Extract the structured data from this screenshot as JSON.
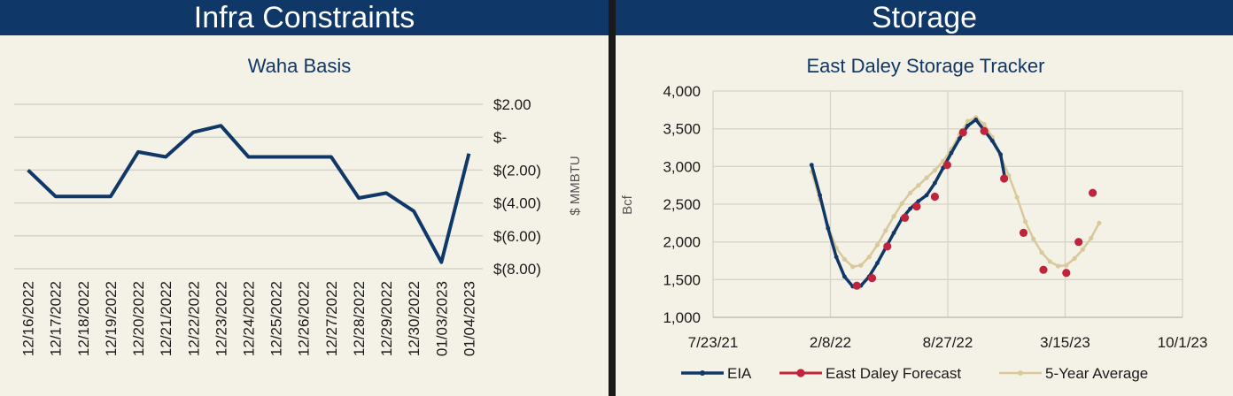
{
  "left_panel": {
    "banner": "Infra Constraints"
  },
  "right_panel": {
    "banner": "Storage"
  },
  "colors": {
    "banner": "#0f3768",
    "eia": "#0f3768",
    "forecast": "#c0243c",
    "five_year": "#d9c99a",
    "background": "#f4f1e6"
  },
  "chart_data": [
    {
      "type": "line",
      "title": "Waha Basis",
      "ylabel": "$ MMBTU",
      "categories": [
        "12/16/2022",
        "12/17/2022",
        "12/18/2022",
        "12/19/2022",
        "12/20/2022",
        "12/21/2022",
        "12/22/2022",
        "12/23/2022",
        "12/24/2022",
        "12/25/2022",
        "12/26/2022",
        "12/27/2022",
        "12/28/2022",
        "12/29/2022",
        "12/30/2022",
        "01/03/2023",
        "01/04/2023"
      ],
      "values": [
        -2.0,
        -3.6,
        -3.6,
        -3.6,
        -0.9,
        -1.2,
        0.3,
        0.7,
        -1.2,
        -1.2,
        -1.2,
        -1.2,
        -3.7,
        -3.4,
        -4.5,
        -7.6,
        -1.0
      ],
      "ylim": [
        -8,
        2
      ],
      "y_ticks": [
        2,
        0,
        -2,
        -4,
        -6,
        -8
      ],
      "y_tick_labels": [
        "$2.00",
        "$-",
        "$(2.00)",
        "$(4.00)",
        "$(6.00)",
        "$(8.00)"
      ],
      "grid": true
    },
    {
      "type": "line",
      "title": "East Daley Storage Tracker",
      "ylabel": "Bcf",
      "xlim": [
        "2021-07-23",
        "2023-10-01"
      ],
      "ylim": [
        1000,
        4000
      ],
      "x_ticks": [
        "2021-07-23",
        "2022-02-08",
        "2022-08-27",
        "2023-03-15",
        "2023-10-01"
      ],
      "x_tick_labels": [
        "7/23/21",
        "2/8/22",
        "8/27/22",
        "3/15/23",
        "10/1/23"
      ],
      "y_ticks": [
        1000,
        1500,
        2000,
        2500,
        3000,
        3500,
        4000
      ],
      "y_tick_labels": [
        "1,000",
        "1,500",
        "2,000",
        "2,500",
        "3,000",
        "3,500",
        "4,000"
      ],
      "legend": "bottom",
      "grid": true,
      "series": [
        {
          "name": "EIA",
          "points": [
            [
              "2022-01-07",
              3020
            ],
            [
              "2022-01-21",
              2620
            ],
            [
              "2022-02-04",
              2180
            ],
            [
              "2022-02-18",
              1800
            ],
            [
              "2022-03-04",
              1540
            ],
            [
              "2022-03-18",
              1410
            ],
            [
              "2022-04-01",
              1420
            ],
            [
              "2022-04-15",
              1540
            ],
            [
              "2022-04-29",
              1720
            ],
            [
              "2022-05-13",
              1920
            ],
            [
              "2022-05-27",
              2120
            ],
            [
              "2022-06-10",
              2310
            ],
            [
              "2022-06-24",
              2440
            ],
            [
              "2022-07-08",
              2540
            ],
            [
              "2022-07-22",
              2620
            ],
            [
              "2022-08-05",
              2780
            ],
            [
              "2022-08-19",
              2980
            ],
            [
              "2022-09-02",
              3180
            ],
            [
              "2022-09-16",
              3370
            ],
            [
              "2022-09-30",
              3540
            ],
            [
              "2022-10-14",
              3620
            ],
            [
              "2022-10-28",
              3480
            ],
            [
              "2022-11-11",
              3340
            ],
            [
              "2022-11-25",
              3160
            ],
            [
              "2022-12-02",
              2860
            ]
          ]
        },
        {
          "name": "East Daley Forecast",
          "points": [
            [
              "2022-03-25",
              1420
            ],
            [
              "2022-04-20",
              1520
            ],
            [
              "2022-05-16",
              1940
            ],
            [
              "2022-06-15",
              2320
            ],
            [
              "2022-07-05",
              2470
            ],
            [
              "2022-08-05",
              2600
            ],
            [
              "2022-08-26",
              3020
            ],
            [
              "2022-09-22",
              3450
            ],
            [
              "2022-10-28",
              3470
            ],
            [
              "2022-12-01",
              2840
            ],
            [
              "2023-01-03",
              2120
            ],
            [
              "2023-02-06",
              1630
            ],
            [
              "2023-03-17",
              1590
            ],
            [
              "2023-04-07",
              2000
            ],
            [
              "2023-05-01",
              2650
            ]
          ]
        },
        {
          "name": "5-Year Average",
          "points": [
            [
              "2022-01-07",
              2930
            ],
            [
              "2022-01-21",
              2560
            ],
            [
              "2022-02-04",
              2210
            ],
            [
              "2022-02-18",
              1920
            ],
            [
              "2022-03-04",
              1770
            ],
            [
              "2022-03-18",
              1670
            ],
            [
              "2022-04-01",
              1690
            ],
            [
              "2022-04-15",
              1800
            ],
            [
              "2022-04-29",
              1960
            ],
            [
              "2022-05-13",
              2150
            ],
            [
              "2022-05-27",
              2340
            ],
            [
              "2022-06-10",
              2510
            ],
            [
              "2022-06-24",
              2650
            ],
            [
              "2022-07-08",
              2750
            ],
            [
              "2022-07-22",
              2850
            ],
            [
              "2022-08-05",
              2950
            ],
            [
              "2022-08-19",
              3070
            ],
            [
              "2022-09-02",
              3230
            ],
            [
              "2022-09-16",
              3420
            ],
            [
              "2022-09-30",
              3600
            ],
            [
              "2022-10-14",
              3650
            ],
            [
              "2022-10-28",
              3560
            ],
            [
              "2022-11-11",
              3390
            ],
            [
              "2022-11-25",
              3140
            ],
            [
              "2022-12-09",
              2880
            ],
            [
              "2022-12-23",
              2590
            ],
            [
              "2023-01-06",
              2270
            ],
            [
              "2023-01-20",
              2040
            ],
            [
              "2023-02-03",
              1860
            ],
            [
              "2023-02-17",
              1740
            ],
            [
              "2023-03-03",
              1680
            ],
            [
              "2023-03-17",
              1690
            ],
            [
              "2023-03-31",
              1780
            ],
            [
              "2023-04-14",
              1900
            ],
            [
              "2023-04-28",
              2050
            ],
            [
              "2023-05-12",
              2250
            ]
          ]
        }
      ]
    }
  ]
}
